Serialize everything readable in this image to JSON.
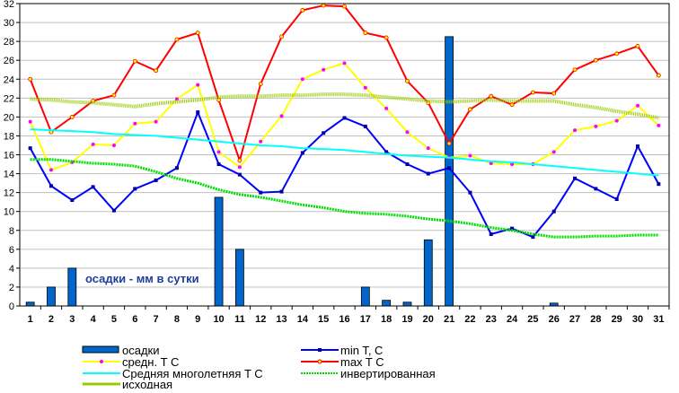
{
  "chart_data": {
    "type": "bar+line",
    "categories": [
      "1",
      "2",
      "3",
      "4",
      "5",
      "6",
      "7",
      "8",
      "9",
      "10",
      "11",
      "12",
      "13",
      "14",
      "15",
      "16",
      "17",
      "18",
      "19",
      "20",
      "21",
      "22",
      "23",
      "24",
      "25",
      "26",
      "27",
      "28",
      "29",
      "30",
      "31"
    ],
    "ylim": [
      0,
      32
    ],
    "yticks": [
      "0",
      "2",
      "4",
      "6",
      "8",
      "10",
      "12",
      "14",
      "16",
      "18",
      "20",
      "22",
      "24",
      "26",
      "28",
      "30",
      "32"
    ],
    "grid": true,
    "legend_position": "bottom",
    "annotation": "осадки - мм в сутки",
    "series": [
      {
        "name": "осадки",
        "kind": "bar",
        "color": "#0066CC",
        "values": [
          0.4,
          2.0,
          4.0,
          0,
          0,
          0,
          0,
          0,
          0,
          11.5,
          6.0,
          0,
          0,
          0,
          0,
          0,
          2.0,
          0.6,
          0.4,
          7.0,
          28.5,
          0,
          0,
          0,
          0,
          0.3,
          0,
          0,
          0,
          0,
          0
        ]
      },
      {
        "name": "min T, C",
        "kind": "line",
        "color": "#0000FF",
        "values": [
          16.7,
          12.7,
          11.2,
          12.6,
          10.1,
          12.4,
          13.3,
          14.6,
          20.5,
          15.0,
          13.9,
          12.0,
          12.1,
          16.2,
          18.3,
          19.9,
          19.0,
          16.3,
          15.0,
          14.0,
          14.6,
          12.0,
          7.6,
          8.2,
          7.3,
          10.0,
          13.5,
          12.4,
          11.3,
          16.9,
          12.9
        ]
      },
      {
        "name": "средн. T C",
        "kind": "line",
        "color": "#FFFF00",
        "values": [
          19.5,
          14.4,
          15.2,
          17.1,
          17.0,
          19.3,
          19.5,
          21.9,
          23.4,
          16.3,
          14.7,
          17.4,
          20.1,
          24.0,
          25.0,
          25.7,
          23.1,
          20.9,
          18.4,
          16.7,
          15.7,
          15.9,
          15.1,
          15.0,
          15.0,
          16.3,
          18.6,
          19.0,
          19.6,
          21.2,
          19.1
        ]
      },
      {
        "name": "max T C",
        "kind": "line",
        "color": "#FF0000",
        "values": [
          24.0,
          18.4,
          20.0,
          21.7,
          22.3,
          25.9,
          24.9,
          28.2,
          28.9,
          21.8,
          15.4,
          23.5,
          28.5,
          31.3,
          31.8,
          31.7,
          28.9,
          28.4,
          23.8,
          21.5,
          17.2,
          20.8,
          22.2,
          21.3,
          22.6,
          22.5,
          25.0,
          26.0,
          26.7,
          27.5,
          24.4
        ]
      },
      {
        "name": "Средняя многолетняя T C",
        "kind": "line",
        "color": "#00FFFF",
        "values": [
          18.7,
          18.6,
          18.5,
          18.4,
          18.2,
          18.1,
          18.0,
          17.8,
          17.6,
          17.4,
          17.2,
          17.0,
          16.9,
          16.7,
          16.6,
          16.5,
          16.3,
          16.1,
          15.9,
          15.8,
          15.7,
          15.5,
          15.3,
          15.2,
          15.0,
          14.8,
          14.6,
          14.4,
          14.2,
          14.0,
          13.8
        ]
      },
      {
        "name": "инвертированная",
        "kind": "line",
        "color": "#00DD00",
        "values": [
          15.5,
          15.5,
          15.3,
          15.1,
          15.0,
          14.8,
          14.2,
          13.5,
          13.0,
          12.3,
          11.8,
          11.5,
          11.1,
          10.7,
          10.4,
          10.0,
          9.8,
          9.7,
          9.5,
          9.2,
          9.0,
          8.7,
          8.3,
          8.0,
          7.6,
          7.3,
          7.3,
          7.4,
          7.4,
          7.5,
          7.5
        ]
      },
      {
        "name": "исходная",
        "kind": "line",
        "color": "#99CC00",
        "values": [
          21.9,
          21.8,
          21.6,
          21.5,
          21.3,
          21.1,
          21.4,
          21.6,
          21.8,
          22.1,
          22.2,
          22.2,
          22.3,
          22.3,
          22.4,
          22.4,
          22.3,
          22.1,
          21.9,
          21.7,
          21.6,
          21.7,
          21.8,
          21.7,
          21.7,
          21.7,
          21.3,
          21.0,
          20.6,
          20.3,
          19.9
        ]
      }
    ]
  }
}
